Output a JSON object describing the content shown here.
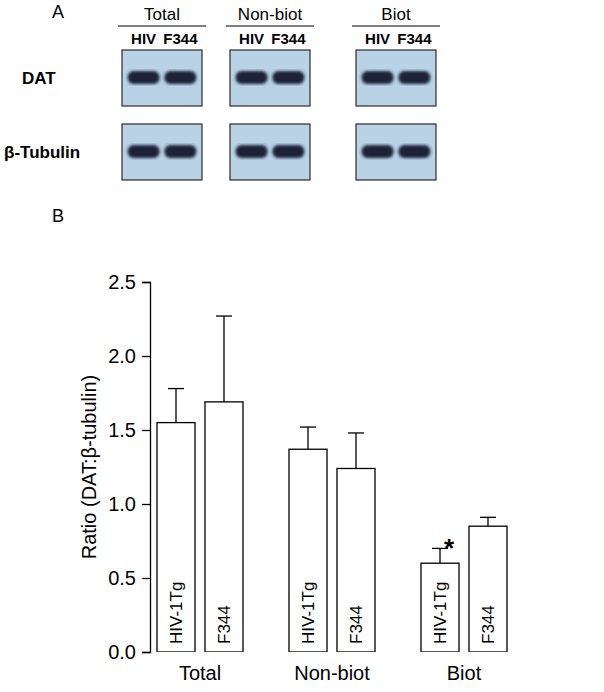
{
  "panel_a": {
    "label": "A",
    "groups": [
      {
        "title": "Total",
        "lanes": [
          "HIV",
          "F344"
        ]
      },
      {
        "title": "Non-biot",
        "lanes": [
          "HIV",
          "F344"
        ]
      },
      {
        "title": "Biot",
        "lanes": [
          "HIV",
          "F344"
        ]
      }
    ],
    "rows": [
      "DAT",
      "β-Tubulin"
    ]
  },
  "chart_data": {
    "type": "bar",
    "panel_label": "B",
    "y_label": "Ratio (DAT:β-tubulin)",
    "categories": [
      "Total",
      "Non-biot",
      "Biot"
    ],
    "series": [
      {
        "name": "HIV-1Tg",
        "color": "#ffffff",
        "values": [
          1.55,
          1.37,
          0.6
        ],
        "errors": [
          0.23,
          0.15,
          0.1
        ]
      },
      {
        "name": "F344",
        "color": "#ffffff",
        "values": [
          1.69,
          1.24,
          0.85
        ],
        "errors": [
          0.58,
          0.24,
          0.06
        ]
      }
    ],
    "annotations": [
      {
        "text": "*",
        "category": "Biot",
        "series": "HIV-1Tg"
      }
    ],
    "ylim": [
      0,
      2.5
    ],
    "yticks": [
      {
        "value": 0,
        "label": "0.0"
      },
      {
        "value": 0.5,
        "label": "0.5"
      },
      {
        "value": 1,
        "label": "1.0"
      },
      {
        "value": 1.5,
        "label": "1.5"
      },
      {
        "value": 2,
        "label": "2.0"
      },
      {
        "value": 2.5,
        "label": "2.5"
      }
    ],
    "grid": false
  }
}
